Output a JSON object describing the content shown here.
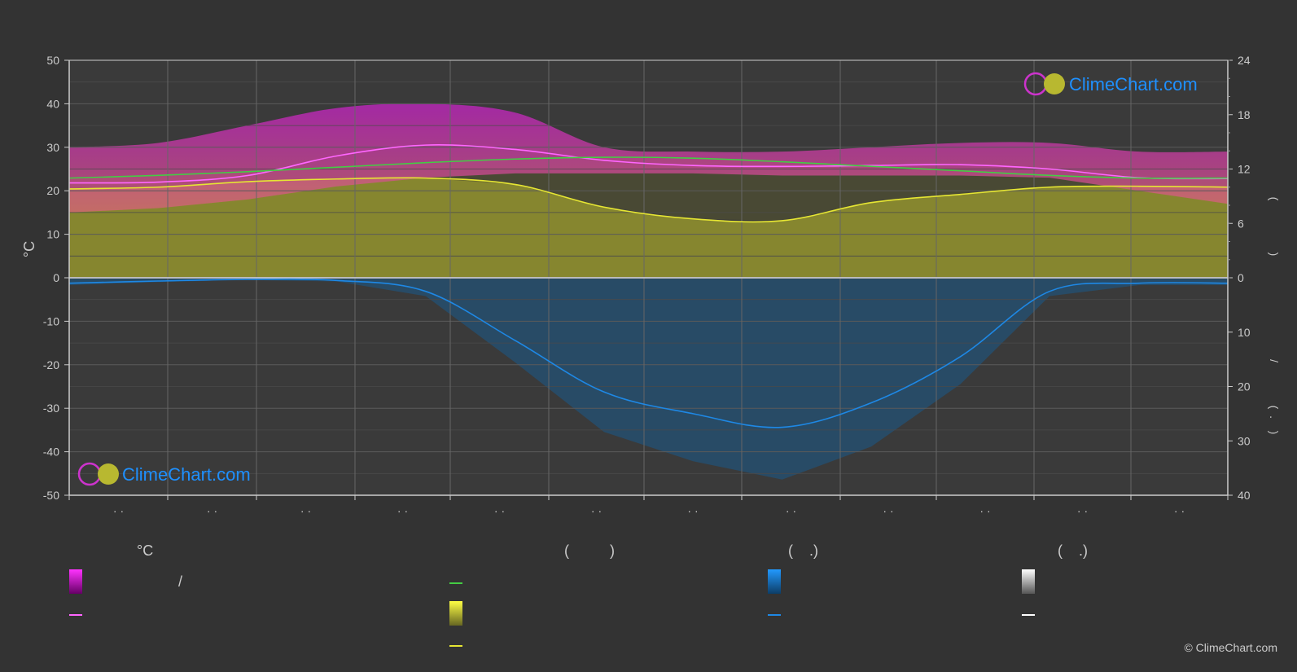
{
  "chart_data": {
    "type": "area",
    "left_axis": {
      "label": "°C",
      "ticks": [
        "50",
        "40",
        "30",
        "20",
        "10",
        "0",
        "-10",
        "-20",
        "-30",
        "-40",
        "-50"
      ],
      "ylim": [
        -50,
        50
      ]
    },
    "right_axis_top": {
      "ticks": [
        "24",
        "18",
        "12",
        "6",
        "0"
      ],
      "ylim": [
        0,
        24
      ]
    },
    "right_axis_bottom": {
      "ticks": [
        "10",
        "20",
        "30",
        "40"
      ],
      "ylim": [
        0,
        40
      ]
    },
    "right_axis_glyphs": [
      "(",
      ")",
      "/",
      "(",
      ".",
      ")"
    ],
    "x_tick_marks": [
      "· ·",
      "· ·",
      "· ·",
      "· ·",
      "· ·",
      "· ·",
      "· ·",
      "· ·",
      "· ·",
      "· ·",
      "· ·",
      "· ·"
    ],
    "grid": true,
    "x_months": 12,
    "series": [
      {
        "key": "max_temp_mean",
        "color": "#ff66ff",
        "values": [
          21.8,
          22.0,
          23.5,
          28.0,
          30.5,
          29.5,
          27.0,
          25.8,
          25.6,
          25.8,
          26.0,
          25.0,
          23.0,
          22.8
        ]
      },
      {
        "key": "daylight",
        "color": "#44cc44",
        "values": [
          11.0,
          11.3,
          11.7,
          12.2,
          12.7,
          13.1,
          13.3,
          13.2,
          12.8,
          12.3,
          11.8,
          11.3,
          11.0,
          11.0
        ]
      },
      {
        "key": "sunshine",
        "color": "#e6e633",
        "values": [
          9.8,
          10.0,
          10.6,
          10.9,
          11.0,
          10.3,
          7.8,
          6.5,
          6.3,
          8.3,
          9.2,
          10.0,
          10.1,
          10.0
        ]
      },
      {
        "key": "precipitation",
        "color": "#1e88e5",
        "values": [
          1.0,
          0.6,
          0.3,
          0.5,
          2.5,
          11.5,
          21.0,
          25.0,
          27.5,
          23.0,
          14.5,
          2.5,
          1.0,
          1.0
        ]
      }
    ],
    "bands": {
      "temp_range_top": [
        30.0,
        31.0,
        35.0,
        39.0,
        40.0,
        38.0,
        30.0,
        29.0,
        29.0,
        30.0,
        31.0,
        31.0,
        29.0,
        29.0
      ],
      "temp_range_bottom": [
        15.0,
        16.0,
        18.0,
        21.0,
        23.0,
        24.0,
        24.0,
        24.0,
        23.5,
        23.5,
        23.5,
        23.0,
        20.0,
        17.0
      ]
    },
    "colors": {
      "background": "#333333",
      "grid": "#555555",
      "temp_band": "#cc22cc",
      "temp_band_low": "#e06080",
      "sunshine_fill": "#8a8a2e",
      "precip_fill": "#1a5a8a",
      "axis_line": "#cccccc",
      "zero_line": "#bbbbbb"
    }
  },
  "logo": {
    "text": "ClimeChart.com"
  },
  "legend": {
    "col1_head": "°C",
    "col1_slash": "/",
    "col2_head": "(          )",
    "col3_head": "(    .)",
    "col4_head": "(    .)"
  },
  "copyright": "© ClimeChart.com"
}
